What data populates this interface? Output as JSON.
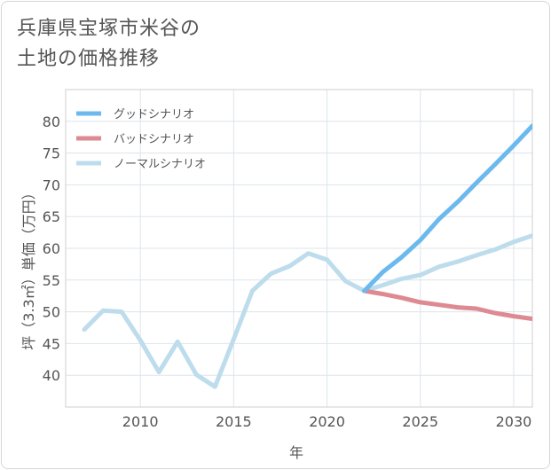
{
  "title": {
    "line1": "兵庫県宝塚市米谷の",
    "line2": "土地の価格推移"
  },
  "chart_data": {
    "type": "line",
    "title": "兵庫県宝塚市米谷の土地の価格推移",
    "xlabel": "年",
    "ylabel": "坪（3.3㎡）単価（万円）",
    "xlim": [
      2006,
      2031
    ],
    "ylim": [
      35,
      85
    ],
    "xticks": [
      2010,
      2015,
      2020,
      2025,
      2030
    ],
    "yticks": [
      40,
      45,
      50,
      55,
      60,
      65,
      70,
      75,
      80
    ],
    "grid": true,
    "legend_position": "top-left",
    "series": [
      {
        "name": "グッドシナリオ",
        "color": "#6cb9ee",
        "x": [
          2022,
          2023,
          2024,
          2025,
          2026,
          2027,
          2028,
          2029,
          2030,
          2031
        ],
        "y": [
          53.3,
          56.3,
          58.6,
          61.3,
          64.6,
          67.3,
          70.3,
          73.2,
          76.2,
          79.3
        ]
      },
      {
        "name": "バッドシナリオ",
        "color": "#dd8a92",
        "x": [
          2022,
          2023,
          2024,
          2025,
          2026,
          2027,
          2028,
          2029,
          2030,
          2031
        ],
        "y": [
          53.3,
          52.8,
          52.2,
          51.5,
          51.1,
          50.7,
          50.5,
          49.8,
          49.3,
          48.9
        ]
      },
      {
        "name": "ノーマルシナリオ",
        "color": "#bddcec",
        "x": [
          2007,
          2008,
          2009,
          2010,
          2011,
          2012,
          2013,
          2014,
          2015,
          2016,
          2017,
          2018,
          2019,
          2020,
          2021,
          2022,
          2023,
          2024,
          2025,
          2026,
          2027,
          2028,
          2029,
          2030,
          2031
        ],
        "y": [
          47.2,
          50.2,
          50.0,
          45.5,
          40.5,
          45.3,
          40.1,
          38.2,
          45.7,
          53.3,
          56.0,
          57.2,
          59.2,
          58.2,
          54.8,
          53.3,
          54.2,
          55.2,
          55.8,
          57.1,
          57.9,
          58.9,
          59.8,
          61.0,
          62.0
        ]
      }
    ]
  }
}
